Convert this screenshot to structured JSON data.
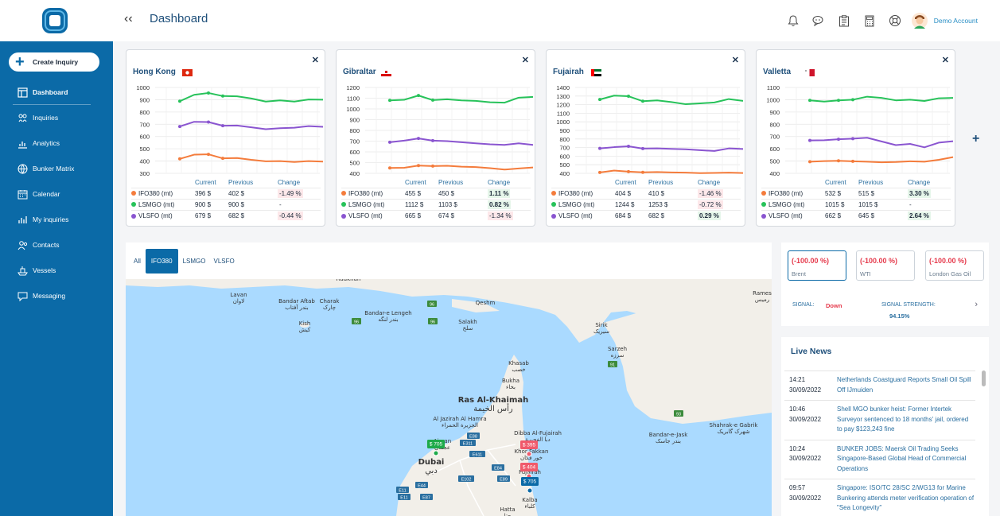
{
  "header": {
    "title": "Dashboard",
    "account": "Demo Account"
  },
  "sidebar": {
    "create_label": "Create Inquiry",
    "items": [
      {
        "label": "Dashboard",
        "icon": "dashboard-icon",
        "active": true
      },
      {
        "label": "Inquiries",
        "icon": "inquiries-icon"
      },
      {
        "label": "Analytics",
        "icon": "analytics-icon"
      },
      {
        "label": "Bunker Matrix",
        "icon": "globe-icon"
      },
      {
        "label": "Calendar",
        "icon": "calendar-icon"
      },
      {
        "label": "My inquiries",
        "icon": "my-inquiries-icon"
      },
      {
        "label": "Contacts",
        "icon": "contacts-icon"
      },
      {
        "label": "Vessels",
        "icon": "vessel-icon"
      },
      {
        "label": "Messaging",
        "icon": "messaging-icon"
      }
    ]
  },
  "table_headers": {
    "current": "Current",
    "previous": "Previous",
    "change": "Change"
  },
  "ports": [
    {
      "name": "Hong Kong",
      "flag": "hk",
      "chart_data": {
        "type": "line",
        "yticks": [
          "1000",
          "900",
          "800",
          "700",
          "600",
          "500",
          "400",
          "300"
        ],
        "ylim": [
          300,
          1000
        ],
        "series": [
          {
            "name": "IFO380 (mt)",
            "color": "#f47c3c",
            "values": [
              418,
              452,
              455,
              422,
              425,
              410,
              398,
              400,
              392,
              400,
              396
            ]
          },
          {
            "name": "LSMGO (mt)",
            "color": "#27c25a",
            "values": [
              888,
              940,
              955,
              930,
              928,
              910,
              885,
              895,
              885,
              902,
              900
            ]
          },
          {
            "name": "VLSFO (mt)",
            "color": "#8a55d0",
            "values": [
              682,
              720,
              718,
              688,
              690,
              675,
              660,
              668,
              672,
              685,
              679
            ]
          }
        ]
      },
      "rows": [
        {
          "name": "IFO380 (mt)",
          "color": "#f47c3c",
          "current": "396 $",
          "previous": "402 $",
          "change": "-1.49 %",
          "dir": "neg"
        },
        {
          "name": "LSMGO (mt)",
          "color": "#27c25a",
          "current": "900 $",
          "previous": "900 $",
          "change": "-",
          "dir": "none"
        },
        {
          "name": "VLSFO (mt)",
          "color": "#8a55d0",
          "current": "679 $",
          "previous": "682 $",
          "change": "-0.44 %",
          "dir": "neg"
        }
      ]
    },
    {
      "name": "Gibraltar",
      "flag": "gi",
      "chart_data": {
        "type": "line",
        "yticks": [
          "1200",
          "1100",
          "1000",
          "900",
          "800",
          "700",
          "600",
          "500",
          "400"
        ],
        "ylim": [
          400,
          1200
        ],
        "series": [
          {
            "name": "IFO380 (mt)",
            "color": "#f47c3c",
            "values": [
              450,
              452,
              472,
              468,
              470,
              462,
              458,
              448,
              435,
              445,
              455
            ]
          },
          {
            "name": "LSMGO (mt)",
            "color": "#27c25a",
            "values": [
              1080,
              1085,
              1125,
              1082,
              1090,
              1080,
              1075,
              1062,
              1058,
              1105,
              1112
            ]
          },
          {
            "name": "VLSFO (mt)",
            "color": "#8a55d0",
            "values": [
              690,
              705,
              725,
              705,
              700,
              690,
              680,
              670,
              665,
              680,
              665
            ]
          }
        ]
      },
      "rows": [
        {
          "name": "IFO380 (mt)",
          "color": "#f47c3c",
          "current": "455 $",
          "previous": "450 $",
          "change": "1.11 %",
          "dir": "pos"
        },
        {
          "name": "LSMGO (mt)",
          "color": "#27c25a",
          "current": "1112 $",
          "previous": "1103 $",
          "change": "0.82 %",
          "dir": "pos"
        },
        {
          "name": "VLSFO (mt)",
          "color": "#8a55d0",
          "current": "665 $",
          "previous": "674 $",
          "change": "-1.34 %",
          "dir": "neg"
        }
      ]
    },
    {
      "name": "Fujairah",
      "flag": "ae",
      "chart_data": {
        "type": "line",
        "yticks": [
          "1400",
          "1300",
          "1200",
          "1100",
          "1000",
          "900",
          "800",
          "700",
          "600",
          "500",
          "400"
        ],
        "ylim": [
          400,
          1400
        ],
        "series": [
          {
            "name": "IFO380 (mt)",
            "color": "#f47c3c",
            "values": [
              410,
              432,
              420,
              412,
              415,
              410,
              408,
              402,
              405,
              408,
              404
            ]
          },
          {
            "name": "LSMGO (mt)",
            "color": "#27c25a",
            "values": [
              1260,
              1305,
              1298,
              1240,
              1250,
              1230,
              1205,
              1215,
              1225,
              1265,
              1244
            ]
          },
          {
            "name": "VLSFO (mt)",
            "color": "#8a55d0",
            "values": [
              690,
              705,
              715,
              688,
              690,
              685,
              680,
              670,
              660,
              690,
              684
            ]
          }
        ]
      },
      "rows": [
        {
          "name": "IFO380 (mt)",
          "color": "#f47c3c",
          "current": "404 $",
          "previous": "410 $",
          "change": "-1.46 %",
          "dir": "neg"
        },
        {
          "name": "LSMGO (mt)",
          "color": "#27c25a",
          "current": "1244 $",
          "previous": "1253 $",
          "change": "-0.72 %",
          "dir": "neg"
        },
        {
          "name": "VLSFO (mt)",
          "color": "#8a55d0",
          "current": "684 $",
          "previous": "682 $",
          "change": "0.29 %",
          "dir": "pos"
        }
      ]
    },
    {
      "name": "Valletta",
      "flag": "mt",
      "chart_data": {
        "type": "line",
        "yticks": [
          "1100",
          "1000",
          "900",
          "800",
          "700",
          "600",
          "500",
          "400"
        ],
        "ylim": [
          400,
          1100
        ],
        "series": [
          {
            "name": "IFO380 (mt)",
            "color": "#f47c3c",
            "values": [
              495,
              500,
              502,
              498,
              495,
              490,
              492,
              498,
              495,
              510,
              532
            ]
          },
          {
            "name": "LSMGO (mt)",
            "color": "#27c25a",
            "values": [
              995,
              985,
              995,
              1000,
              1025,
              1015,
              995,
              1000,
              990,
              1012,
              1015
            ]
          },
          {
            "name": "VLSFO (mt)",
            "color": "#8a55d0",
            "values": [
              668,
              670,
              678,
              683,
              690,
              660,
              630,
              640,
              612,
              650,
              662
            ]
          }
        ]
      },
      "rows": [
        {
          "name": "IFO380 (mt)",
          "color": "#f47c3c",
          "current": "532 $",
          "previous": "515 $",
          "change": "3.30 %",
          "dir": "pos"
        },
        {
          "name": "LSMGO (mt)",
          "color": "#27c25a",
          "current": "1015 $",
          "previous": "1015 $",
          "change": "-",
          "dir": "none"
        },
        {
          "name": "VLSFO (mt)",
          "color": "#8a55d0",
          "current": "662 $",
          "previous": "645 $",
          "change": "2.64 %",
          "dir": "pos"
        }
      ]
    }
  ],
  "map": {
    "tabs": [
      "All",
      "IFO380",
      "LSMGO",
      "VLSFO"
    ],
    "active_tab": "IFO380",
    "places": [
      {
        "en": "Lavan",
        "ar": "لاوان"
      },
      {
        "en": "Bandar Aftab",
        "ar": "بندر آفتاب"
      },
      {
        "en": "Charak",
        "ar": "چارک"
      },
      {
        "en": "Bandar-e Lengeh",
        "ar": "بندر لنگه"
      },
      {
        "en": "Qeshm",
        "ar": ""
      },
      {
        "en": "Kish",
        "ar": "کیش"
      },
      {
        "en": "Salakh",
        "ar": "سلخ"
      },
      {
        "en": "Sirik",
        "ar": "سیریک"
      },
      {
        "en": "Sarzeh",
        "ar": "سرزه"
      },
      {
        "en": "Khasab",
        "ar": "خصب"
      },
      {
        "en": "Bukha",
        "ar": "بخاء"
      },
      {
        "en": "Ras Al-Khaimah",
        "ar": "رأس الخيمة"
      },
      {
        "en": "Al Jazirah Al Hamra",
        "ar": "الجزيرة الحمراء"
      },
      {
        "en": "Dibba Al-Fujairah",
        "ar": "دبا الفجيرة"
      },
      {
        "en": "Khor Fakkan",
        "ar": "خور فكان"
      },
      {
        "en": "Ajman",
        "ar": "عجمان"
      },
      {
        "en": "Dubai",
        "ar": "دبي"
      },
      {
        "en": "Fujairah",
        "ar": ""
      },
      {
        "en": "Kalba",
        "ar": "كلباء"
      },
      {
        "en": "Hatta",
        "ar": "حتا"
      },
      {
        "en": "Bandar-e-Jask",
        "ar": "بندر جاسک"
      },
      {
        "en": "Shahrak-e Gabrik",
        "ar": "شهرک گابریک"
      },
      {
        "en": "Rames",
        "ar": "رمیس"
      },
      {
        "en": "Rudkhan",
        "ar": ""
      }
    ],
    "markers": [
      {
        "label": "$ 705",
        "color": "#1eaa4a"
      },
      {
        "label": "$ 395",
        "color": "#f05a6b"
      },
      {
        "label": "$ 404",
        "color": "#f05a6b"
      },
      {
        "label": "$ 705",
        "color": "#0b6aa7"
      }
    ],
    "road_badges": [
      "E11",
      "E87",
      "E88",
      "E311",
      "E102",
      "E84",
      "E89",
      "E44",
      "E11",
      "E611",
      "96",
      "96",
      "96",
      "91",
      "93"
    ]
  },
  "signal": {
    "boxes": [
      {
        "value": "(-100.00 %)",
        "name": "Brent"
      },
      {
        "value": "(-100.00 %)",
        "name": "WTI"
      },
      {
        "value": "(-100.00 %)",
        "name": "London Gas Oil"
      }
    ],
    "label": "SIGNAL:",
    "value": "Down",
    "strength_label": "SIGNAL STRENGTH:",
    "strength_value": "94.15%"
  },
  "news": {
    "title": "Live News",
    "items": [
      {
        "time": "14:21",
        "date": "30/09/2022",
        "text": "Netherlands Coastguard Reports Small Oil Spill Off IJmuiden"
      },
      {
        "time": "10:46",
        "date": "30/09/2022",
        "text": "Shell MGO bunker heist: Former Intertek Surveyor sentenced to 18 months' jail, ordered to pay $123,243 fine"
      },
      {
        "time": "10:24",
        "date": "30/09/2022",
        "text": "BUNKER JOBS: Maersk Oil Trading Seeks Singapore-Based Global Head of Commercial Operations"
      },
      {
        "time": "09:57",
        "date": "30/09/2022",
        "text": "Singapore: ISO/TC 28/SC 2/WG13 for Marine Bunkering attends meter verification operation of \"Sea Longevity\""
      }
    ]
  }
}
